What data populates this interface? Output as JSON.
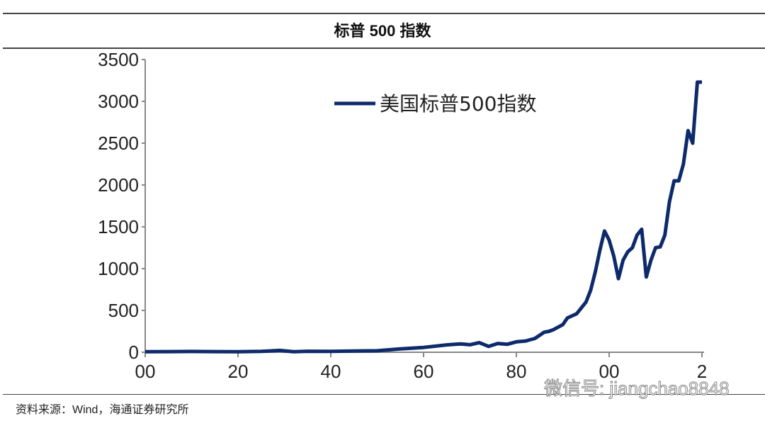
{
  "title": "标普 500 指数",
  "source": "资料来源：Wind，海通证券研究所",
  "watermark": "微信号: jiangchao8848",
  "chart_data": {
    "type": "line",
    "title": "标普 500 指数",
    "xlabel": "",
    "ylabel": "",
    "xlim": [
      1900,
      2020
    ],
    "ylim": [
      0,
      3500
    ],
    "yticks": [
      0,
      500,
      1000,
      1500,
      2000,
      2500,
      3000,
      3500
    ],
    "xtick_values": [
      1900,
      1920,
      1940,
      1960,
      1980,
      2000,
      2020
    ],
    "xtick_labels": [
      "00",
      "20",
      "40",
      "60",
      "80",
      "00",
      "2"
    ],
    "grid": false,
    "legend_position": "top-center",
    "line_color": "#0d2a6b",
    "series": [
      {
        "name": "美国标普500指数",
        "x": [
          1900,
          1905,
          1910,
          1915,
          1920,
          1925,
          1929,
          1932,
          1935,
          1940,
          1945,
          1950,
          1955,
          1960,
          1965,
          1968,
          1970,
          1972,
          1974,
          1976,
          1978,
          1980,
          1982,
          1984,
          1986,
          1987,
          1988,
          1990,
          1991,
          1993,
          1995,
          1996,
          1997,
          1998,
          1999,
          2000,
          2001,
          2002,
          2003,
          2004,
          2005,
          2006,
          2007,
          2008,
          2009,
          2010,
          2011,
          2012,
          2013,
          2014,
          2015,
          2016,
          2017,
          2018,
          2019,
          2020
        ],
        "y": [
          6,
          8,
          9,
          8,
          7,
          10,
          22,
          7,
          12,
          11,
          15,
          18,
          40,
          58,
          88,
          100,
          90,
          115,
          70,
          105,
          95,
          125,
          135,
          165,
          240,
          250,
          270,
          330,
          410,
          460,
          600,
          740,
          960,
          1220,
          1450,
          1340,
          1150,
          880,
          1100,
          1200,
          1250,
          1400,
          1470,
          900,
          1100,
          1250,
          1260,
          1400,
          1800,
          2050,
          2050,
          2250,
          2650,
          2500,
          3230,
          3230
        ]
      }
    ]
  }
}
